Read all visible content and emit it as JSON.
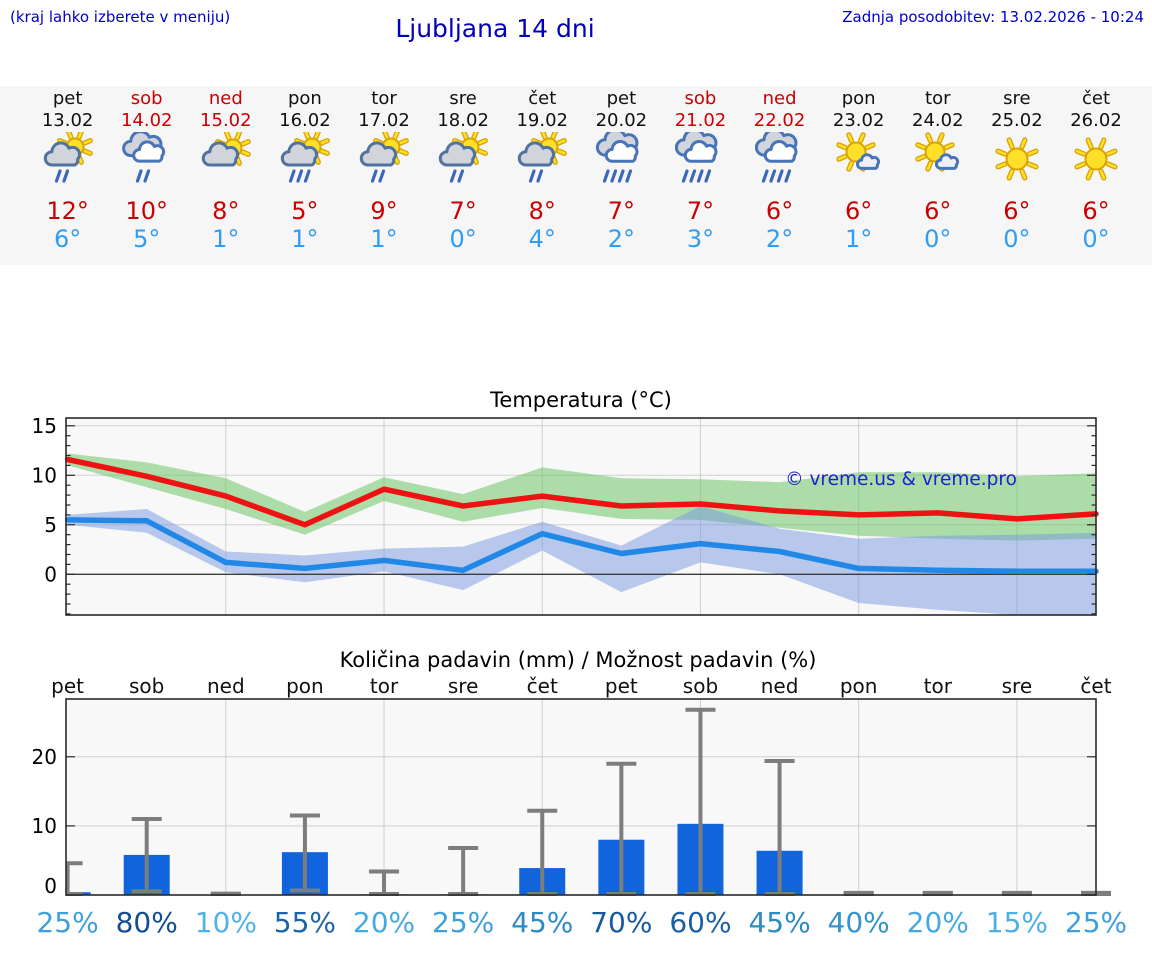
{
  "header": {
    "hint": "(kraj lahko izberete v meniju)",
    "title": "Ljubljana 14 dni",
    "updated": "Zadnja posodobitev: 13.02.2026 - 10:24"
  },
  "colors": {
    "weekend_red": "#cc0000",
    "high_temp_red": "#cb0000",
    "low_temp_blue": "#2e9df5",
    "header_blue": "#0000bb",
    "strip_bg": "#f6f6f7",
    "plot_bg": "#f8f8f8",
    "grid": "#cfcfcf",
    "zero_line": "#3c3c3c",
    "border": "#2a2a2a",
    "watermark_blue": "#2020cc"
  },
  "days": [
    {
      "name": "pet",
      "date": "13.02",
      "weekend": false,
      "icon": "sun-cloud-rain2",
      "high": "12°",
      "low": "6°"
    },
    {
      "name": "sob",
      "date": "14.02",
      "weekend": true,
      "icon": "clouds-rain2",
      "high": "10°",
      "low": "5°"
    },
    {
      "name": "ned",
      "date": "15.02",
      "weekend": true,
      "icon": "sun-cloud",
      "high": "8°",
      "low": "1°"
    },
    {
      "name": "pon",
      "date": "16.02",
      "weekend": false,
      "icon": "sun-cloud-rain3",
      "high": "5°",
      "low": "1°"
    },
    {
      "name": "tor",
      "date": "17.02",
      "weekend": false,
      "icon": "sun-cloud-rain2",
      "high": "9°",
      "low": "1°"
    },
    {
      "name": "sre",
      "date": "18.02",
      "weekend": false,
      "icon": "sun-cloud-rain2",
      "high": "7°",
      "low": "0°"
    },
    {
      "name": "čet",
      "date": "19.02",
      "weekend": false,
      "icon": "sun-cloud-rain2",
      "high": "8°",
      "low": "4°"
    },
    {
      "name": "pet",
      "date": "20.02",
      "weekend": false,
      "icon": "clouds-rain4",
      "high": "7°",
      "low": "2°"
    },
    {
      "name": "sob",
      "date": "21.02",
      "weekend": true,
      "icon": "clouds-rain4",
      "high": "7°",
      "low": "3°"
    },
    {
      "name": "ned",
      "date": "22.02",
      "weekend": true,
      "icon": "clouds-rain4",
      "high": "6°",
      "low": "2°"
    },
    {
      "name": "pon",
      "date": "23.02",
      "weekend": false,
      "icon": "sun-small-cloud",
      "high": "6°",
      "low": "1°"
    },
    {
      "name": "tor",
      "date": "24.02",
      "weekend": false,
      "icon": "sun-small-cloud",
      "high": "6°",
      "low": "0°"
    },
    {
      "name": "sre",
      "date": "25.02",
      "weekend": false,
      "icon": "sun",
      "high": "6°",
      "low": "0°"
    },
    {
      "name": "čet",
      "date": "26.02",
      "weekend": false,
      "icon": "sun",
      "high": "6°",
      "low": "0°"
    }
  ],
  "chart_data": [
    {
      "type": "line",
      "title": "Temperatura (°C)",
      "watermark": "© vreme.us & vreme.pro",
      "categories": [
        "13.02",
        "14.02",
        "15.02",
        "16.02",
        "17.02",
        "18.02",
        "19.02",
        "20.02",
        "21.02",
        "22.02",
        "23.02",
        "24.02",
        "25.02",
        "26.02"
      ],
      "ylim": [
        -4.1,
        15.8
      ],
      "yticks": [
        0,
        5,
        10,
        15
      ],
      "grid_x_indices": [
        2,
        4,
        6,
        8,
        10,
        12
      ],
      "series": [
        {
          "id": "max_temp",
          "color": "#ee1212",
          "values": [
            11.6,
            9.9,
            7.9,
            5.0,
            8.6,
            6.9,
            7.9,
            6.9,
            7.1,
            6.4,
            6.0,
            6.2,
            5.6,
            6.1
          ]
        },
        {
          "id": "min_temp",
          "color": "#2288e8",
          "values": [
            5.5,
            5.4,
            1.2,
            0.6,
            1.4,
            0.4,
            4.1,
            2.1,
            3.1,
            2.3,
            0.6,
            0.4,
            0.3,
            0.3
          ]
        }
      ],
      "bands": [
        {
          "id": "max_range",
          "color": "rgba(110,198,104,0.55)",
          "upper": [
            12.2,
            11.3,
            9.7,
            6.3,
            9.8,
            8.1,
            10.8,
            9.7,
            9.6,
            9.3,
            10.3,
            10.3,
            9.9,
            10.2
          ],
          "lower": [
            11.0,
            8.8,
            6.6,
            4.0,
            7.4,
            5.3,
            6.7,
            5.6,
            5.5,
            4.7,
            3.9,
            3.6,
            3.4,
            3.6
          ]
        },
        {
          "id": "min_range",
          "color": "rgba(118,152,224,0.50)",
          "upper": [
            6.0,
            6.6,
            2.3,
            1.9,
            2.6,
            2.8,
            5.3,
            2.9,
            6.9,
            4.6,
            3.6,
            3.9,
            4.0,
            4.2
          ],
          "lower": [
            5.0,
            4.2,
            0.2,
            -0.8,
            0.3,
            -1.6,
            2.4,
            -1.8,
            1.2,
            0.0,
            -2.9,
            -3.6,
            -4.1,
            -4.3
          ]
        }
      ]
    },
    {
      "type": "bar",
      "title": "Količina padavin (mm) / Možnost padavin (%)",
      "categories": [
        "pet",
        "sob",
        "ned",
        "pon",
        "tor",
        "sre",
        "čet",
        "pet",
        "sob",
        "ned",
        "pon",
        "tor",
        "sre",
        "čet"
      ],
      "values": [
        0.4,
        5.8,
        0.05,
        6.2,
        0.1,
        0.1,
        3.9,
        8.0,
        10.3,
        6.4,
        0.05,
        0.05,
        0.05,
        0.05
      ],
      "whisker_low": [
        0,
        0.4,
        0,
        0.5,
        0,
        0,
        0,
        0,
        0,
        0,
        0,
        0,
        0,
        0
      ],
      "whisker_high": [
        4.6,
        11.0,
        0.2,
        11.5,
        3.4,
        6.8,
        12.2,
        19.0,
        26.8,
        19.4,
        0.3,
        0.3,
        0.3,
        0.3
      ],
      "probabilities": [
        "25%",
        "80%",
        "10%",
        "55%",
        "20%",
        "25%",
        "45%",
        "70%",
        "60%",
        "45%",
        "40%",
        "20%",
        "15%",
        "25%"
      ],
      "prob_colors": [
        "#3f9fd8",
        "#124e94",
        "#4fb3e8",
        "#1c64a8",
        "#45a9e0",
        "#3f9fd8",
        "#2d8ac5",
        "#175a9d",
        "#1a5fa5",
        "#2d8ac5",
        "#3492cc",
        "#45a9e0",
        "#4db0e5",
        "#3f9fd8"
      ],
      "ylim": [
        0,
        28.4
      ],
      "yticks": [
        0,
        10,
        20
      ],
      "grid_x_indices": [
        2,
        4,
        6,
        8,
        10,
        12
      ],
      "bar_color": "#1164dc",
      "whisker_color": "#7d7d7d"
    }
  ]
}
